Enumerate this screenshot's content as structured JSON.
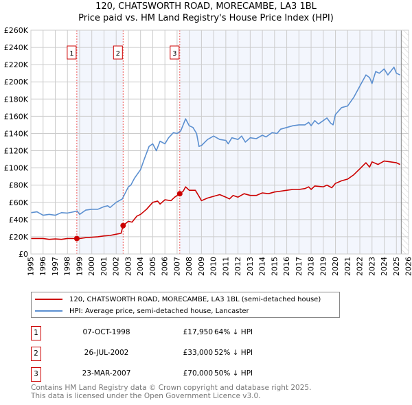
{
  "chart_data": {
    "type": "line",
    "title": "120, CHATSWORTH ROAD, MORECAMBE, LA3 1BL",
    "subtitle": "Price paid vs. HM Land Registry's House Price Index (HPI)",
    "xlim": [
      1995,
      2026
    ],
    "ylim": [
      0,
      260000
    ],
    "x_ticks": [
      "1995",
      "1996",
      "1997",
      "1998",
      "1999",
      "2000",
      "2001",
      "2002",
      "2003",
      "2004",
      "2005",
      "2006",
      "2007",
      "2008",
      "2009",
      "2010",
      "2011",
      "2012",
      "2013",
      "2014",
      "2015",
      "2016",
      "2017",
      "2018",
      "2019",
      "2020",
      "2021",
      "2022",
      "2023",
      "2024",
      "2025",
      "2026"
    ],
    "y_ticks": [
      {
        "v": 0,
        "label": "£0"
      },
      {
        "v": 20000,
        "label": "£20K"
      },
      {
        "v": 40000,
        "label": "£40K"
      },
      {
        "v": 60000,
        "label": "£60K"
      },
      {
        "v": 80000,
        "label": "£80K"
      },
      {
        "v": 100000,
        "label": "£100K"
      },
      {
        "v": 120000,
        "label": "£120K"
      },
      {
        "v": 140000,
        "label": "£140K"
      },
      {
        "v": 160000,
        "label": "£160K"
      },
      {
        "v": 180000,
        "label": "£180K"
      },
      {
        "v": 200000,
        "label": "£200K"
      },
      {
        "v": 220000,
        "label": "£220K"
      },
      {
        "v": 240000,
        "label": "£240K"
      },
      {
        "v": 260000,
        "label": "£260K"
      }
    ],
    "grid": true,
    "data_end": 2025.4,
    "series": [
      {
        "name": "120, CHATSWORTH ROAD, MORECAMBE, LA3 1BL (semi-detached house)",
        "color": "#cc0000",
        "x": [
          1995,
          1996,
          1996.5,
          1997,
          1997.5,
          1998,
          1998.77,
          1999,
          1999.5,
          2000,
          2000.5,
          2001,
          2001.5,
          2002,
          2002.4,
          2002.57,
          2003,
          2003.3,
          2003.7,
          2004,
          2004.5,
          2005,
          2005.4,
          2005.6,
          2006,
          2006.5,
          2006.8,
          2007.22,
          2007.5,
          2007.7,
          2008,
          2008.5,
          2008.8,
          2009,
          2009.5,
          2010,
          2010.5,
          2011,
          2011.3,
          2011.6,
          2012,
          2012.5,
          2013,
          2013.5,
          2014,
          2014.5,
          2015,
          2015.5,
          2016,
          2016.5,
          2017,
          2017.5,
          2017.8,
          2018,
          2018.3,
          2019,
          2019.3,
          2019.7,
          2020,
          2020.5,
          2021,
          2021.5,
          2022,
          2022.5,
          2022.8,
          2023,
          2023.5,
          2024,
          2024.5,
          2025,
          2025.3
        ],
        "y": [
          18000,
          18000,
          17000,
          17500,
          17000,
          18000,
          17950,
          18000,
          19000,
          19500,
          20000,
          21000,
          21500,
          23000,
          24000,
          33000,
          38000,
          37000,
          44000,
          46000,
          52000,
          60000,
          61500,
          58000,
          63000,
          62000,
          66000,
          70000,
          73000,
          78000,
          74000,
          74000,
          67000,
          62000,
          65000,
          67000,
          69000,
          66000,
          64000,
          68000,
          66000,
          70000,
          68000,
          68000,
          71000,
          70000,
          72000,
          73000,
          74000,
          75000,
          75000,
          76000,
          78000,
          75000,
          79000,
          78000,
          80000,
          77000,
          82000,
          85000,
          87000,
          92000,
          99000,
          106000,
          101000,
          107000,
          104000,
          108000,
          107000,
          106000,
          104000
        ]
      },
      {
        "name": "HPI: Average price, semi-detached house, Lancaster",
        "color": "#5b8fd0",
        "x": [
          1995,
          1995.5,
          1996,
          1996.5,
          1997,
          1997.5,
          1998,
          1998.5,
          1998.8,
          1999,
          1999.5,
          2000,
          2000.5,
          2001,
          2001.3,
          2001.5,
          2002,
          2002.5,
          2003,
          2003.2,
          2003.5,
          2004,
          2004.3,
          2004.7,
          2005,
          2005.3,
          2005.6,
          2006,
          2006.3,
          2006.7,
          2007,
          2007.3,
          2007.7,
          2008,
          2008.3,
          2008.6,
          2008.8,
          2009,
          2009.5,
          2010,
          2010.5,
          2011,
          2011.2,
          2011.5,
          2012,
          2012.3,
          2012.6,
          2013,
          2013.5,
          2014,
          2014.3,
          2014.8,
          2015.2,
          2015.5,
          2016,
          2016.5,
          2017,
          2017.5,
          2017.8,
          2018,
          2018.3,
          2018.6,
          2019,
          2019.3,
          2019.6,
          2019.8,
          2020,
          2020.5,
          2021,
          2021.5,
          2022,
          2022.5,
          2022.8,
          2023,
          2023.3,
          2023.6,
          2024,
          2024.3,
          2024.8,
          2025,
          2025.3
        ],
        "y": [
          48000,
          49000,
          45000,
          46000,
          45000,
          48000,
          47500,
          49000,
          50000,
          46000,
          51000,
          52000,
          52000,
          55000,
          56000,
          54000,
          60000,
          64000,
          78000,
          80000,
          88000,
          98000,
          110000,
          125000,
          128000,
          120000,
          131000,
          128000,
          135000,
          141000,
          140000,
          143000,
          157000,
          149000,
          147000,
          140000,
          125000,
          126000,
          133000,
          137000,
          133000,
          132000,
          128000,
          135000,
          133000,
          137000,
          130000,
          135000,
          134000,
          138000,
          136000,
          141000,
          140000,
          145000,
          147000,
          149000,
          150000,
          150000,
          153000,
          149000,
          155000,
          151000,
          155000,
          158000,
          152000,
          150000,
          162000,
          170000,
          172000,
          182000,
          195000,
          208000,
          205000,
          198000,
          212000,
          210000,
          215000,
          208000,
          217000,
          210000,
          208000
        ]
      }
    ],
    "sales": [
      {
        "label": "1",
        "x": 1998.77,
        "price": 17950,
        "date": "07-OCT-1998",
        "price_text": "£17,950",
        "hpi_text": "64% ↓ HPI"
      },
      {
        "label": "2",
        "x": 2002.57,
        "price": 33000,
        "date": "26-JUL-2002",
        "price_text": "£33,000",
        "hpi_text": "52% ↓ HPI"
      },
      {
        "label": "3",
        "x": 2007.22,
        "price": 70000,
        "date": "23-MAR-2007",
        "price_text": "£70,000",
        "hpi_text": "50% ↓ HPI"
      }
    ],
    "legend_placement": "below"
  },
  "footer": {
    "line1": "Contains HM Land Registry data © Crown copyright and database right 2025.",
    "line2": "This data is licensed under the Open Government Licence v3.0."
  }
}
